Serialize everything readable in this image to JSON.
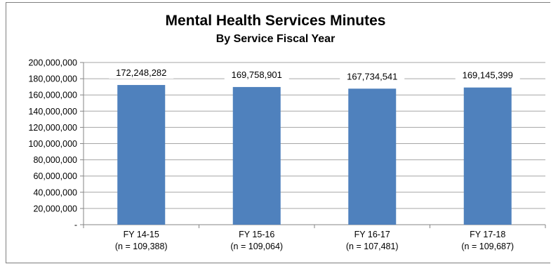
{
  "chart_data": {
    "type": "bar",
    "title": "Mental Health Services Minutes",
    "subtitle": "By Service Fiscal Year",
    "categories": [
      [
        "FY 14-15",
        "(n = 109,388)"
      ],
      [
        "FY 15-16",
        "(n = 109,064)"
      ],
      [
        "FY 16-17",
        "(n = 107,481)"
      ],
      [
        "FY 17-18",
        "(n = 109,687)"
      ]
    ],
    "values": [
      172248282,
      169758901,
      167734541,
      169145399
    ],
    "data_labels": [
      "172,248,282",
      "169,758,901",
      "167,734,541",
      "169,145,399"
    ],
    "ylim": [
      0,
      200000000
    ],
    "yticks": [
      0,
      20000000,
      40000000,
      60000000,
      80000000,
      100000000,
      120000000,
      140000000,
      160000000,
      180000000,
      200000000
    ],
    "ytick_labels": [
      "-",
      "20,000,000",
      "40,000,000",
      "60,000,000",
      "80,000,000",
      "100,000,000",
      "120,000,000",
      "140,000,000",
      "160,000,000",
      "180,000,000",
      "200,000,000"
    ],
    "grid": true,
    "bar_color": "#4f81bd",
    "grid_color": "#a6a6a6"
  }
}
